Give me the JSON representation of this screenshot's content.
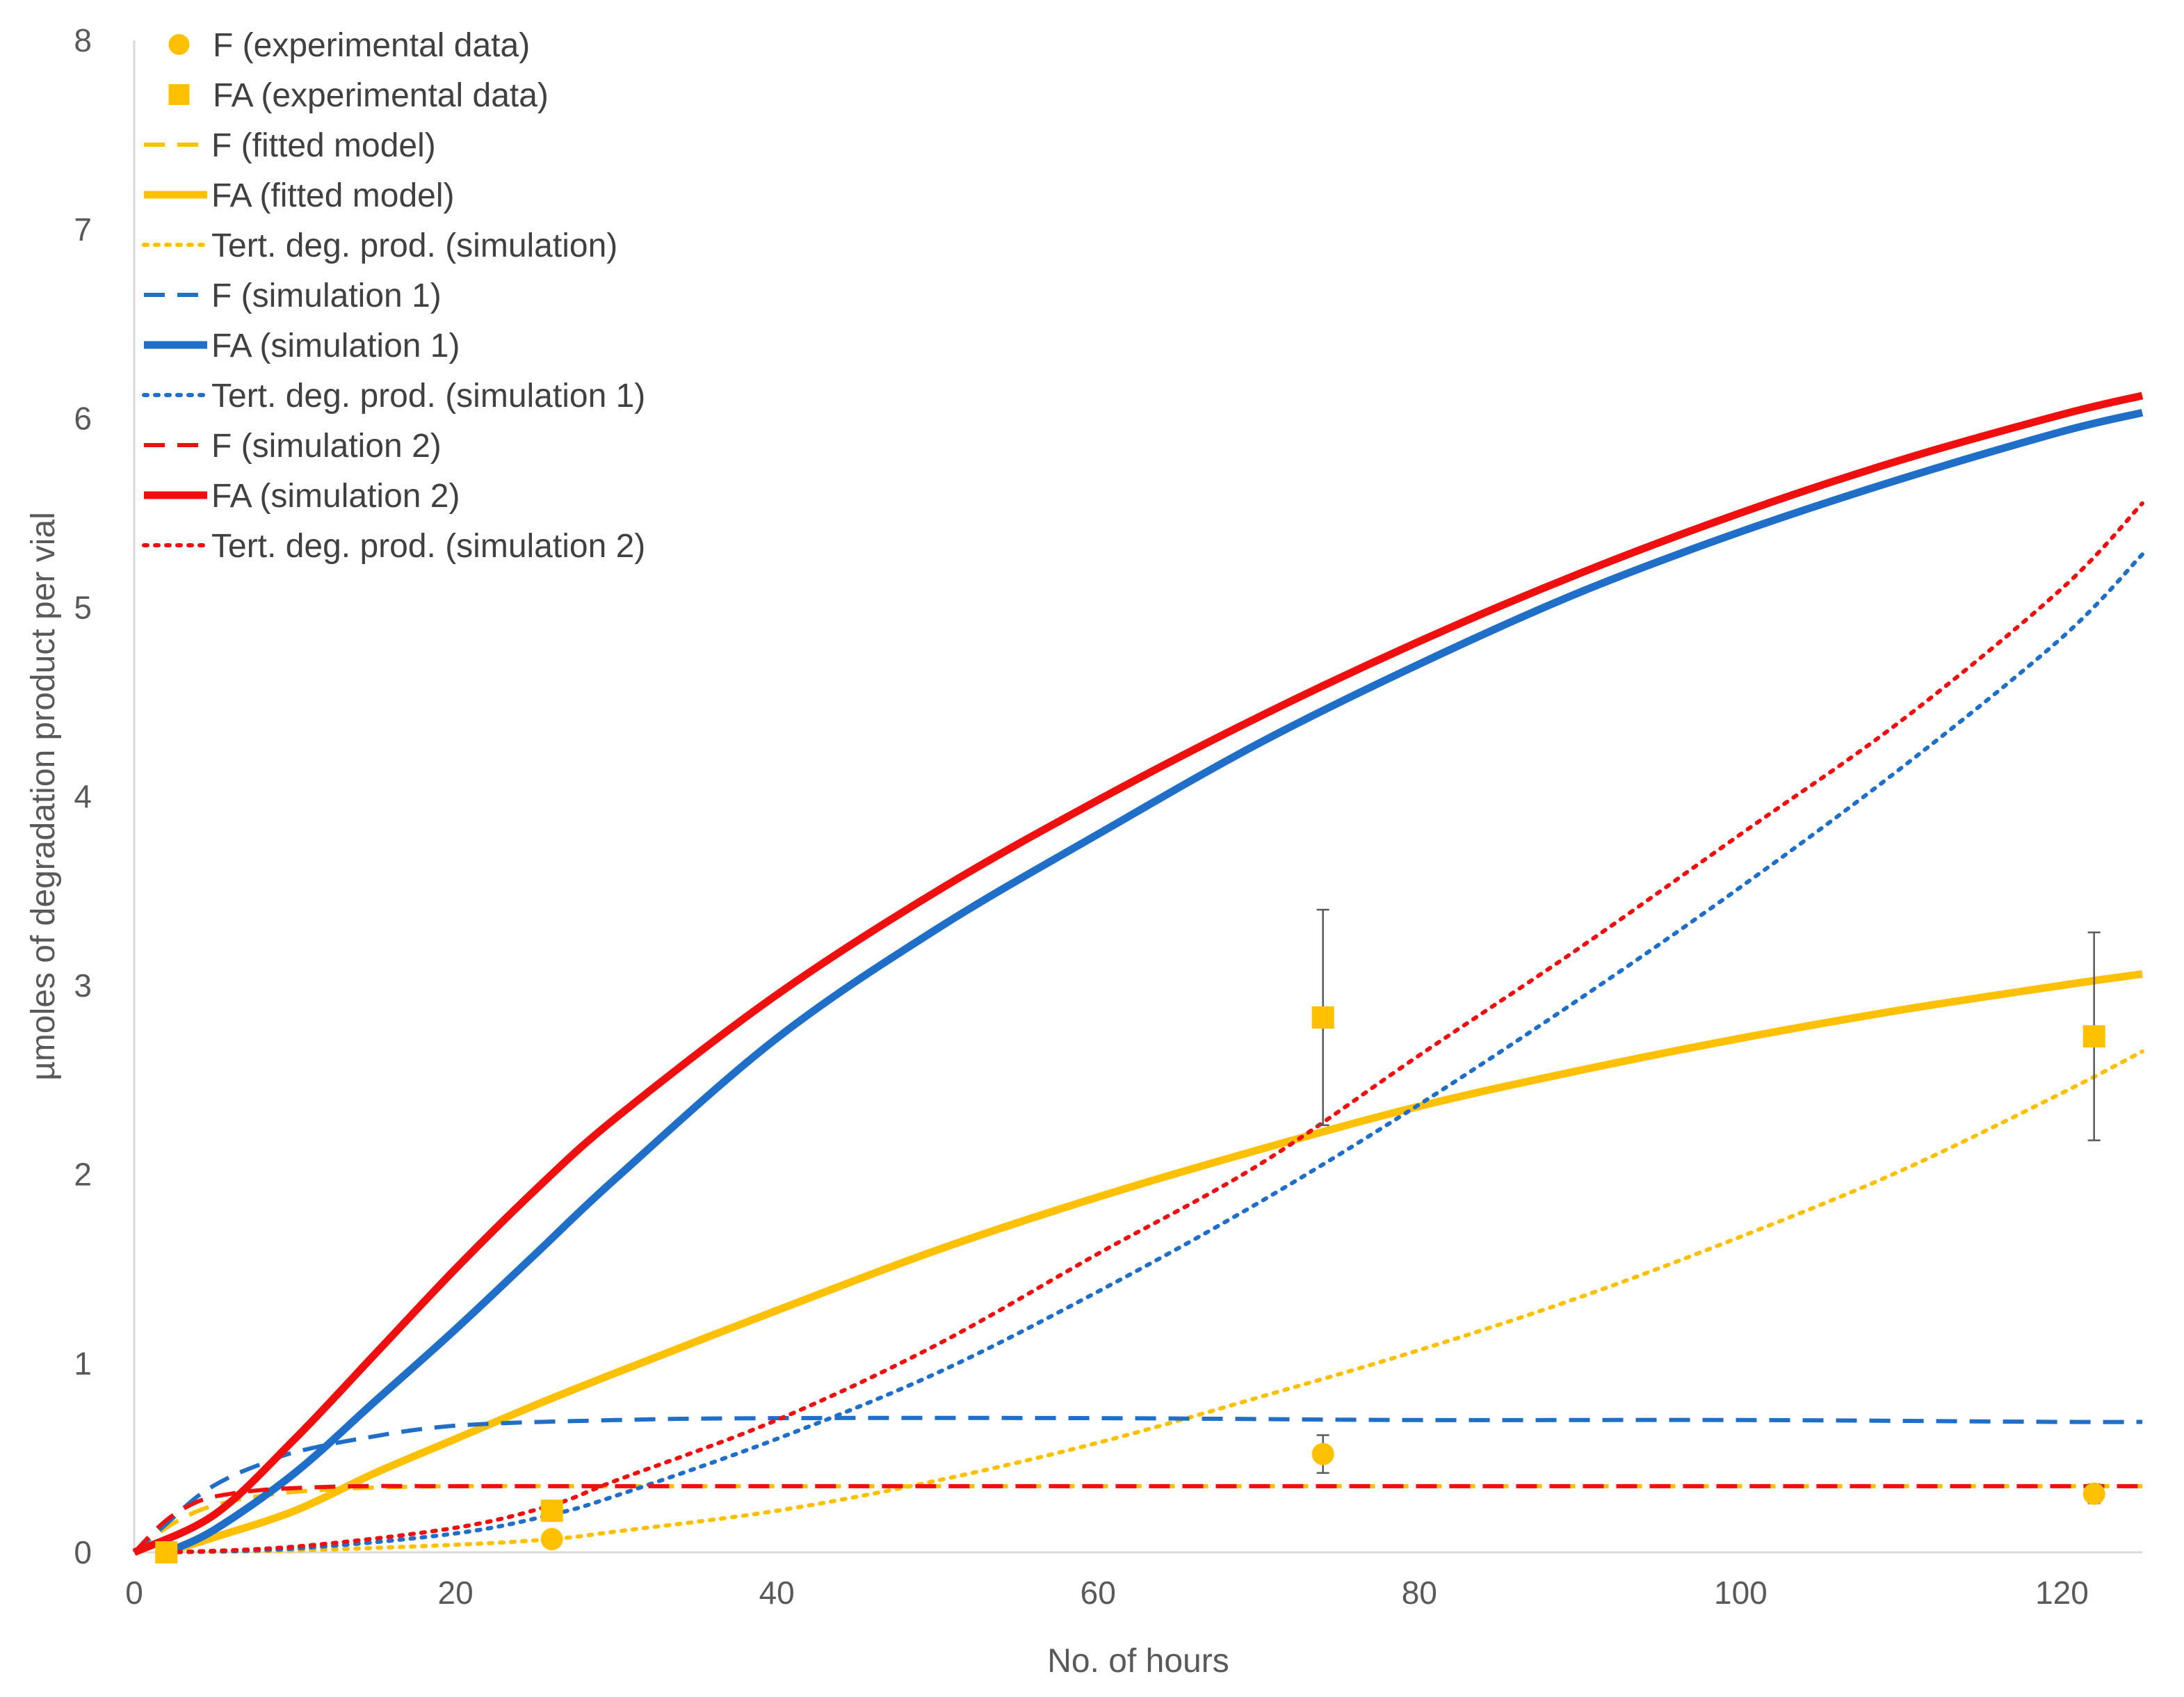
{
  "chart_data": {
    "type": "scatter",
    "title": "",
    "xlabel": "No. of hours",
    "ylabel": "µmoles of degradation product per vial",
    "xlim": [
      0,
      125
    ],
    "ylim": [
      0,
      8
    ],
    "xticks": [
      0,
      20,
      40,
      60,
      80,
      100,
      120
    ],
    "yticks": [
      0,
      1,
      2,
      3,
      4,
      5,
      6,
      7,
      8
    ],
    "grid": false,
    "legend_position": "top-left",
    "colors": {
      "yellow": "#FFC000",
      "blue": "#1F6FC9",
      "red": "#F00F0F",
      "axis": "#D9D9D9",
      "errorbar": "#595959"
    },
    "series": [
      {
        "name": "F (experimental data)",
        "kind": "points",
        "marker": "circle",
        "color": "#FFC000",
        "x": [
          2,
          26,
          74,
          122
        ],
        "y": [
          0.0,
          0.07,
          0.52,
          0.31
        ],
        "err": [
          null,
          null,
          0.1,
          0.05
        ]
      },
      {
        "name": "FA (experimental data)",
        "kind": "points",
        "marker": "square",
        "color": "#FFC000",
        "x": [
          2,
          26,
          74,
          122
        ],
        "y": [
          0.0,
          0.22,
          2.83,
          2.73
        ],
        "err": [
          null,
          null,
          0.57,
          0.55
        ]
      },
      {
        "name": "F (fitted model)",
        "kind": "line",
        "dash": "dashed",
        "width": "thin",
        "color": "#FFC000",
        "x": [
          0,
          2,
          4,
          6,
          8,
          10,
          14,
          20,
          30,
          40,
          60,
          80,
          100,
          120,
          125
        ],
        "y": [
          0,
          0.13,
          0.22,
          0.27,
          0.3,
          0.32,
          0.34,
          0.35,
          0.35,
          0.35,
          0.35,
          0.35,
          0.35,
          0.35,
          0.35
        ]
      },
      {
        "name": "FA (fitted model)",
        "kind": "line",
        "dash": "solid",
        "width": "thick",
        "color": "#FFC000",
        "x": [
          2,
          5,
          10,
          15,
          20,
          25,
          30,
          40,
          50,
          60,
          70,
          80,
          90,
          100,
          110,
          120,
          125
        ],
        "y": [
          0,
          0.08,
          0.22,
          0.42,
          0.6,
          0.78,
          0.95,
          1.28,
          1.6,
          1.88,
          2.13,
          2.36,
          2.55,
          2.72,
          2.87,
          3.0,
          3.06
        ]
      },
      {
        "name": "Tert. deg. prod. (simulation)",
        "kind": "line",
        "dash": "dotted",
        "width": "thin",
        "color": "#FFC000",
        "x": [
          2,
          10,
          20,
          26,
          30,
          40,
          50,
          60,
          70,
          80,
          90,
          100,
          110,
          120,
          125
        ],
        "y": [
          0,
          0.01,
          0.04,
          0.07,
          0.11,
          0.22,
          0.38,
          0.58,
          0.82,
          1.07,
          1.35,
          1.67,
          2.02,
          2.43,
          2.65
        ]
      },
      {
        "name": "F (simulation 1)",
        "kind": "line",
        "dash": "dashed",
        "width": "thin",
        "color": "#1F6FC9",
        "x": [
          0,
          2,
          4,
          6,
          8,
          10,
          14,
          20,
          30,
          40,
          60,
          80,
          100,
          120,
          125
        ],
        "y": [
          0,
          0.15,
          0.3,
          0.4,
          0.47,
          0.53,
          0.6,
          0.67,
          0.7,
          0.71,
          0.71,
          0.7,
          0.7,
          0.69,
          0.69
        ]
      },
      {
        "name": "FA (simulation 1)",
        "kind": "line",
        "dash": "solid",
        "width": "thick",
        "color": "#1F6FC9",
        "x": [
          2,
          5,
          10,
          15,
          20,
          25,
          30,
          40,
          50,
          60,
          70,
          80,
          90,
          100,
          110,
          120,
          125
        ],
        "y": [
          0,
          0.12,
          0.42,
          0.8,
          1.18,
          1.58,
          1.98,
          2.72,
          3.3,
          3.8,
          4.28,
          4.7,
          5.08,
          5.4,
          5.68,
          5.93,
          6.03
        ]
      },
      {
        "name": "Tert. deg. prod. (simulation 1)",
        "kind": "line",
        "dash": "dotted",
        "width": "thin",
        "color": "#1F6FC9",
        "x": [
          2,
          10,
          20,
          26,
          30,
          40,
          50,
          60,
          70,
          80,
          90,
          100,
          110,
          120,
          125
        ],
        "y": [
          0,
          0.02,
          0.1,
          0.2,
          0.3,
          0.6,
          0.95,
          1.38,
          1.85,
          2.37,
          2.93,
          3.52,
          4.15,
          4.84,
          5.28
        ]
      },
      {
        "name": "F (simulation 2)",
        "kind": "line",
        "dash": "dashed",
        "width": "thin",
        "color": "#F00F0F",
        "x": [
          0,
          2,
          4,
          6,
          8,
          10,
          14,
          20,
          30,
          40,
          60,
          80,
          100,
          120,
          125
        ],
        "y": [
          0,
          0.17,
          0.27,
          0.31,
          0.33,
          0.34,
          0.35,
          0.35,
          0.35,
          0.35,
          0.35,
          0.35,
          0.35,
          0.35,
          0.35
        ]
      },
      {
        "name": "FA (simulation 2)",
        "kind": "line",
        "dash": "solid",
        "width": "thick",
        "color": "#F00F0F",
        "x": [
          0,
          5,
          10,
          15,
          20,
          25,
          30,
          40,
          50,
          60,
          70,
          80,
          90,
          100,
          110,
          120,
          125
        ],
        "y": [
          0,
          0.2,
          0.6,
          1.05,
          1.5,
          1.92,
          2.3,
          2.95,
          3.5,
          3.98,
          4.42,
          4.82,
          5.18,
          5.5,
          5.78,
          6.02,
          6.12
        ]
      },
      {
        "name": "Tert. deg. prod. (simulation 2)",
        "kind": "line",
        "dash": "dotted",
        "width": "thin",
        "color": "#F00F0F",
        "x": [
          2,
          10,
          20,
          26,
          30,
          40,
          50,
          60,
          70,
          80,
          90,
          100,
          110,
          120,
          125
        ],
        "y": [
          0,
          0.03,
          0.13,
          0.25,
          0.38,
          0.7,
          1.1,
          1.58,
          2.05,
          2.63,
          3.2,
          3.8,
          4.4,
          5.1,
          5.55
        ]
      }
    ]
  }
}
